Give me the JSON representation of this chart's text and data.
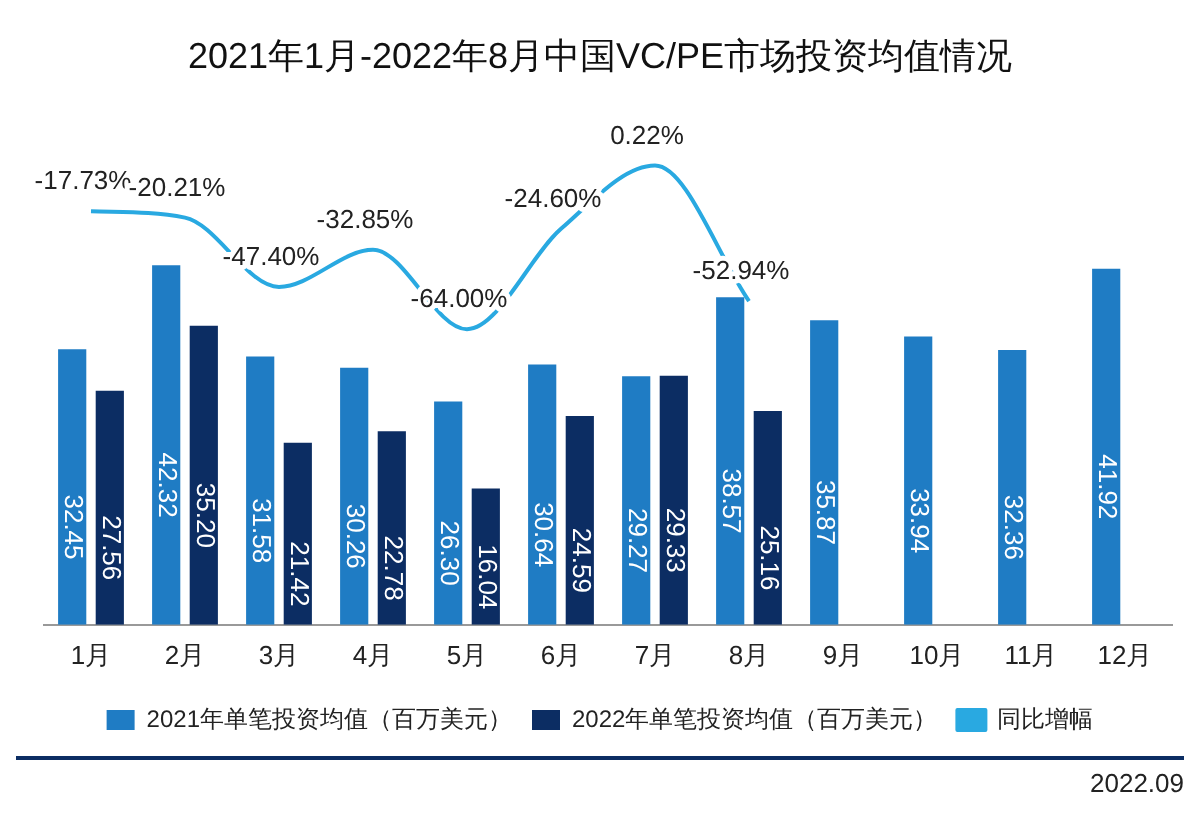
{
  "chart_data": {
    "type": "bar",
    "title": "2021年1月-2022年8月中国VC/PE市场投资均值情况",
    "categories": [
      "1月",
      "2月",
      "3月",
      "4月",
      "5月",
      "6月",
      "7月",
      "8月",
      "9月",
      "10月",
      "11月",
      "12月"
    ],
    "series": [
      {
        "name": "2021年单笔投资均值（百万美元）",
        "color": "#1f7cc4",
        "values": [
          32.45,
          42.32,
          31.58,
          30.26,
          26.3,
          30.64,
          29.27,
          38.57,
          35.87,
          33.94,
          32.36,
          41.92
        ],
        "value_labels": [
          "32.45",
          "42.32",
          "31.58",
          "30.26",
          "26.30",
          "30.64",
          "29.27",
          "38.57",
          "35.87",
          "33.94",
          "32.36",
          "41.92"
        ]
      },
      {
        "name": "2022年单笔投资均值（百万美元）",
        "color": "#0c2d63",
        "values": [
          27.56,
          35.2,
          21.42,
          22.78,
          16.04,
          24.59,
          29.33,
          25.16,
          null,
          null,
          null,
          null
        ],
        "value_labels": [
          "27.56",
          "35.20",
          "21.42",
          "22.78",
          "16.04",
          "24.59",
          "29.33",
          "25.16",
          null,
          null,
          null,
          null
        ]
      },
      {
        "name": "同比增幅",
        "type": "line",
        "axis": "y2",
        "color": "#29a9e1",
        "values": [
          -17.73,
          -20.21,
          -47.4,
          -32.85,
          -64.0,
          -24.6,
          0.22,
          -52.94,
          null,
          null,
          null,
          null
        ],
        "value_labels": [
          "-17.73%",
          "-20.21%",
          "-47.40%",
          "-32.85%",
          "-64.00%",
          "-24.60%",
          "0.22%",
          "-52.94%",
          null,
          null,
          null,
          null
        ]
      }
    ],
    "tick_labels": "x",
    "grid": false,
    "legend": "bottom",
    "marker": "none",
    "annotations": [
      "2022.09"
    ]
  }
}
